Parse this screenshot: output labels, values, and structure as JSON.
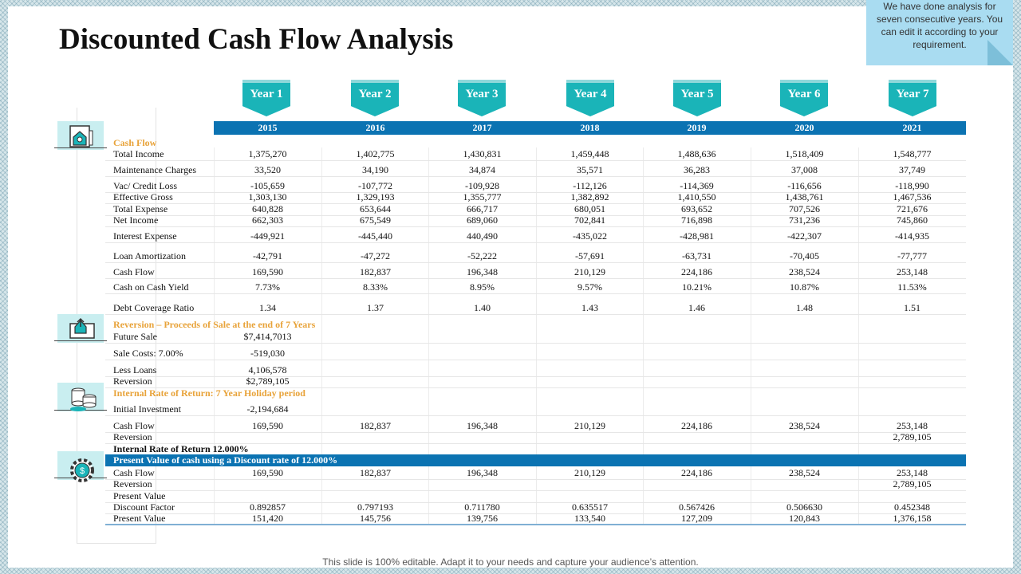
{
  "title": "Discounted Cash Flow Analysis",
  "note": "We have done analysis for seven consecutive years. You can edit it according to your requirement.",
  "footer": "This slide is 100% editable. Adapt it to your needs and capture your audience’s attention.",
  "years": [
    "Year 1",
    "Year 2",
    "Year 3",
    "Year 4",
    "Year 5",
    "Year 6",
    "Year 7"
  ],
  "calendar_years": [
    "2015",
    "2016",
    "2017",
    "2018",
    "2019",
    "2020",
    "2021"
  ],
  "colors": {
    "accent_teal": "#1ab4b8",
    "header_blue": "#0b73b2",
    "section_orange": "#e8a33a",
    "note_blue": "#a9dcf1"
  },
  "icons": [
    "house-calculator-icon",
    "house-upload-icon",
    "coins-icon",
    "dollar-gear-icon"
  ],
  "sections": {
    "cash_flow": "Cash Flow",
    "reversion": "Reversion – Proceeds of Sale at the end of 7 Years",
    "irr": "Internal Rate of Return: 7 Year Holiday period",
    "irr_result": "Internal Rate of Return 12.000%",
    "present_value": "Present Value of cash using a Discount rate of 12.000%"
  },
  "cash_flow_rows": [
    {
      "label": "Total Income",
      "values": [
        "1,375,270",
        "1,402,775",
        "1,430,831",
        "1,459,448",
        "1,488,636",
        "1,518,409",
        "1,548,777"
      ]
    },
    {
      "label": "Maintenance Charges",
      "values": [
        "33,520",
        "34,190",
        "34,874",
        "35,571",
        "36,283",
        "37,008",
        "37,749"
      ]
    },
    {
      "label": "Vac/ Credit Loss",
      "values": [
        "-105,659",
        "-107,772",
        "-109,928",
        "-112,126",
        "-114,369",
        "-116,656",
        "-118,990"
      ]
    },
    {
      "label": "Effective Gross",
      "values": [
        "1,303,130",
        "1,329,193",
        "1,355,777",
        "1,382,892",
        "1,410,550",
        "1,438,761",
        "1,467,536"
      ]
    },
    {
      "label": "Total Expense",
      "values": [
        "640,828",
        "653,644",
        "666,717",
        "680,051",
        "693,652",
        "707,526",
        "721,676"
      ]
    },
    {
      "label": "Net Income",
      "values": [
        "662,303",
        "675,549",
        "689,060",
        "702,841",
        "716,898",
        "731,236",
        "745,860"
      ]
    },
    {
      "label": "Interest Expense",
      "values": [
        "-449,921",
        "-445,440",
        "440,490",
        "-435,022",
        "-428,981",
        "-422,307",
        "-414,935"
      ]
    },
    {
      "label": "Loan Amortization",
      "values": [
        "-42,791",
        "-47,272",
        "-52,222",
        "-57,691",
        "-63,731",
        "-70,405",
        "-77,777"
      ]
    },
    {
      "label": "Cash Flow",
      "values": [
        "169,590",
        "182,837",
        "196,348",
        "210,129",
        "224,186",
        "238,524",
        "253,148"
      ]
    },
    {
      "label": "Cash on Cash Yield",
      "values": [
        "7.73%",
        "8.33%",
        "8.95%",
        "9.57%",
        "10.21%",
        "10.87%",
        "11.53%"
      ]
    },
    {
      "label": "Debt Coverage Ratio",
      "values": [
        "1.34",
        "1.37",
        "1.40",
        "1.43",
        "1.46",
        "1.48",
        "1.51"
      ]
    }
  ],
  "reversion_rows": [
    {
      "label": "Future Sale",
      "values": [
        "$7,414,7013",
        "",
        "",
        "",
        "",
        "",
        ""
      ]
    },
    {
      "label": "Sale Costs: 7.00%",
      "values": [
        "-519,030",
        "",
        "",
        "",
        "",
        "",
        ""
      ]
    },
    {
      "label": "Less Loans",
      "values": [
        "4,106,578",
        "",
        "",
        "",
        "",
        "",
        ""
      ]
    },
    {
      "label": "Reversion",
      "values": [
        "$2,789,105",
        "",
        "",
        "",
        "",
        "",
        ""
      ]
    }
  ],
  "irr_rows": [
    {
      "label": "Initial Investment",
      "values": [
        "-2,194,684",
        "",
        "",
        "",
        "",
        "",
        ""
      ]
    },
    {
      "label": "Cash Flow",
      "values": [
        "169,590",
        "182,837",
        "196,348",
        "210,129",
        "224,186",
        "238,524",
        "253,148"
      ]
    },
    {
      "label": "Reversion",
      "values": [
        "",
        "",
        "",
        "",
        "",
        "",
        "2,789,105"
      ]
    }
  ],
  "pv_rows": [
    {
      "label": "Cash Flow",
      "values": [
        "169,590",
        "182,837",
        "196,348",
        "210,129",
        "224,186",
        "238,524",
        "253,148"
      ]
    },
    {
      "label": "Reversion",
      "values": [
        "",
        "",
        "",
        "",
        "",
        "",
        "2,789,105"
      ]
    },
    {
      "label": "Present Value",
      "values": [
        "",
        "",
        "",
        "",
        "",
        "",
        ""
      ]
    },
    {
      "label": "Discount Factor",
      "values": [
        "0.892857",
        "0.797193",
        "0.711780",
        "0.635517",
        "0.567426",
        "0.506630",
        "0.452348"
      ]
    },
    {
      "label": "Present Value",
      "values": [
        "151,420",
        "145,756",
        "139,756",
        "133,540",
        "127,209",
        "120,843",
        "1,376,158"
      ]
    }
  ]
}
